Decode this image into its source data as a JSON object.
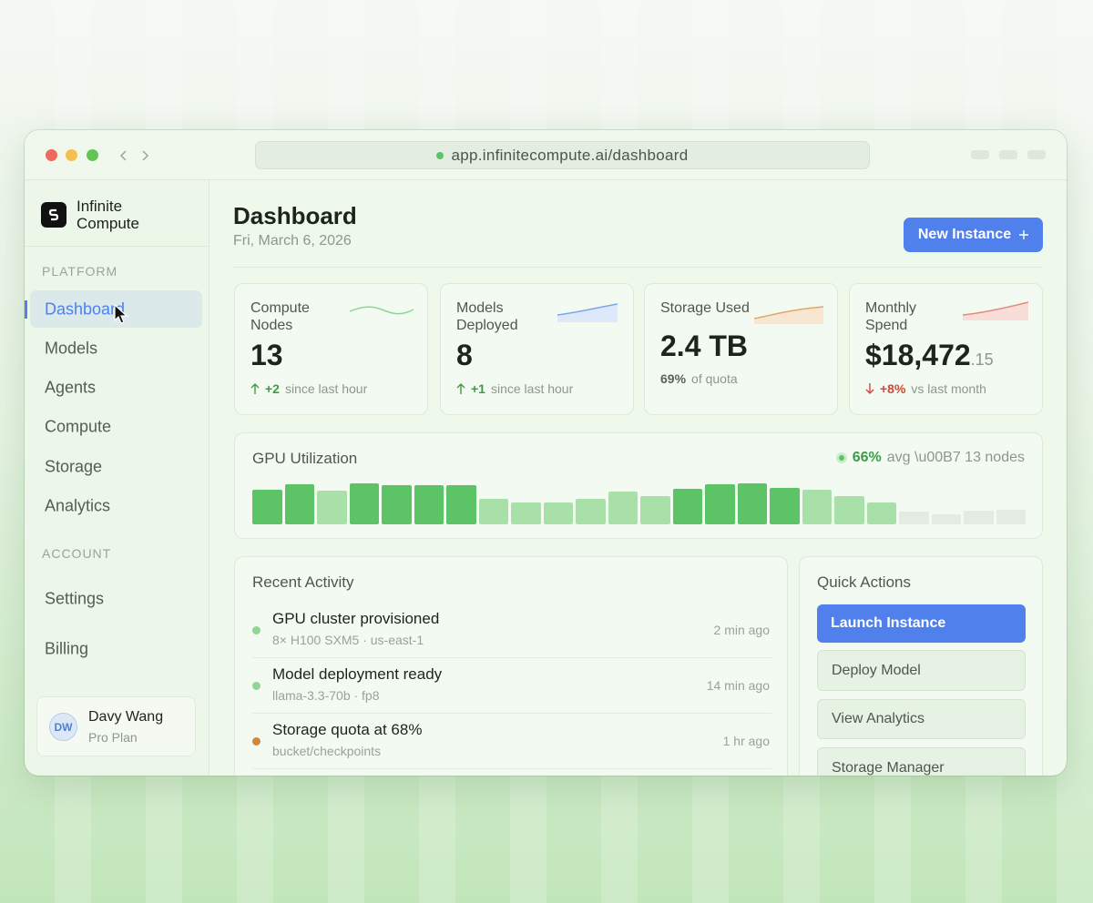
{
  "browser": {
    "url": "app.infinitecompute.ai/dashboard"
  },
  "sidebar": {
    "brand": "Infinite Compute",
    "sections": [
      {
        "title": "PLATFORM",
        "items": [
          "Dashboard",
          "Models",
          "Agents",
          "Compute",
          "Storage",
          "Analytics"
        ]
      },
      {
        "title": "ACCOUNT",
        "items": [
          "Settings",
          "Billing"
        ]
      }
    ],
    "user": {
      "initials": "DW",
      "name": "Davy Wang",
      "plan": "Pro Plan"
    }
  },
  "header": {
    "title": "Dashboard",
    "date": "Fri, March 6, 2026",
    "button": "New Instance"
  },
  "stats": [
    {
      "label": "Compute Nodes",
      "value": "13",
      "delta": "+2",
      "note": "since last hour"
    },
    {
      "label": "Models Deployed",
      "value": "8",
      "delta": "+1",
      "note": "since last hour"
    },
    {
      "label": "Storage Used",
      "value": "2.4 TB",
      "percent": "69%",
      "note": "of quota"
    },
    {
      "label": "Monthly Spend",
      "value": "$18,472",
      "cents": ".15",
      "delta": "+8%",
      "note": "vs last month"
    }
  ],
  "gpu": {
    "title": "GPU Utilization",
    "avg": "66%",
    "note": "avg \\u00B7 13 nodes",
    "values": [
      80,
      91,
      78,
      93,
      89,
      89,
      89,
      58,
      49,
      49,
      58,
      76,
      64,
      82,
      91,
      93,
      84,
      79,
      64,
      49,
      29,
      22,
      31,
      33
    ],
    "colors": [
      "#5cc467",
      "#5cc467",
      "#a9e0a9",
      "#5cc467",
      "#5cc467",
      "#5cc467",
      "#5cc467",
      "#a9e0a9",
      "#a9e0a9",
      "#a9e0a9",
      "#a9e0a9",
      "#a9e0a9",
      "#a9e0a9",
      "#5cc467",
      "#5cc467",
      "#5cc467",
      "#5cc467",
      "#a9e0a9",
      "#a9e0a9",
      "#a9e0a9",
      "#e3ebe2",
      "#e3ebe2",
      "#e3ebe2",
      "#e3ebe2"
    ]
  },
  "activity": {
    "title": "Recent Activity",
    "items": [
      {
        "title": "GPU cluster provisioned",
        "detail": "8× H100 SXM5 · us-east-1",
        "time": "2 min ago",
        "color": "#8fd694"
      },
      {
        "title": "Model deployment ready",
        "detail": "llama-3.3-70b · fp8",
        "time": "14 min ago",
        "color": "#8fd694"
      },
      {
        "title": "Storage quota at 68%",
        "detail": "bucket/checkpoints",
        "time": "1 hr ago",
        "color": "#d0883a"
      }
    ]
  },
  "quick_actions": {
    "title": "Quick Actions",
    "items": [
      "Launch Instance",
      "Deploy Model",
      "View Analytics",
      "Storage Manager"
    ]
  }
}
